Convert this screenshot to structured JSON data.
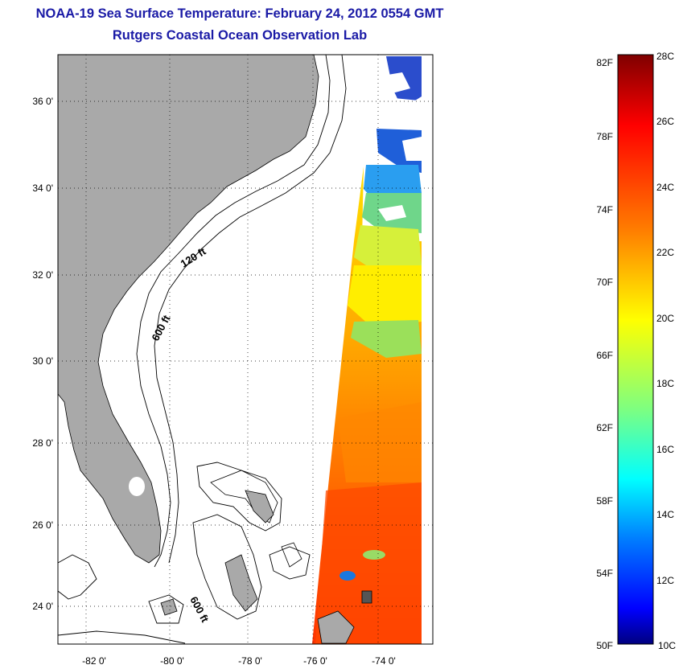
{
  "header": {
    "title": "NOAA-19 Sea Surface Temperature:  February 24, 2012 0554 GMT",
    "subtitle": "Rutgers Coastal Ocean Observation Lab"
  },
  "map": {
    "lat_labels": [
      "36 0'",
      "34 0'",
      "32 0'",
      "30 0'",
      "28 0'",
      "26 0'",
      "24 0'"
    ],
    "lon_labels": [
      "-82 0'",
      "-80 0'",
      "-78 0'",
      "-76 0'",
      "-74 0'"
    ],
    "contour_labels": [
      "120 ft",
      "600 ft",
      "600 ft"
    ],
    "land_color": "#a9a9a9"
  },
  "colorbar": {
    "fahrenheit_labels": [
      "82F",
      "78F",
      "74F",
      "70F",
      "66F",
      "62F",
      "58F",
      "54F",
      "50F"
    ],
    "celsius_labels": [
      "28C",
      "26C",
      "24C",
      "22C",
      "20C",
      "18C",
      "16C",
      "14C",
      "12C",
      "10C"
    ],
    "colormap": [
      "#7f0000",
      "#ff0000",
      "#ff7f00",
      "#ffff00",
      "#7fff7f",
      "#00ffff",
      "#007fff",
      "#0000ff",
      "#00007f"
    ]
  }
}
